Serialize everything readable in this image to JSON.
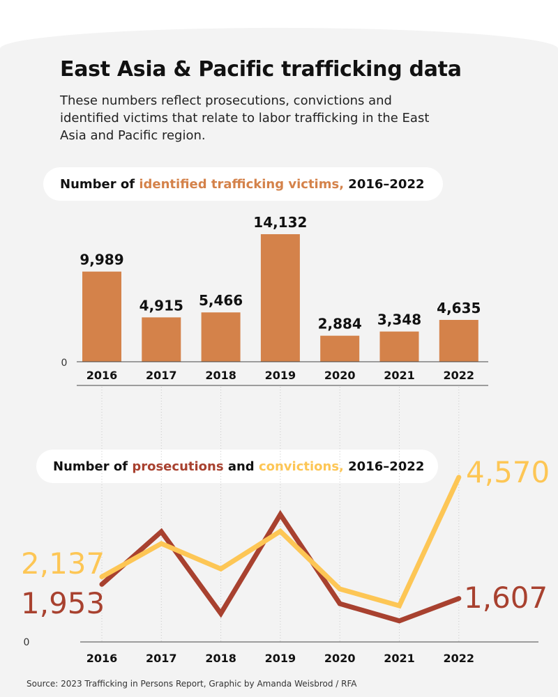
{
  "header": {
    "title": "East Asia & Pacific trafficking data",
    "subtitle": "These numbers reflect prosecutions, convictions and identified victims that relate to labor trafficking in the East Asia and Pacific region."
  },
  "chart_data": [
    {
      "type": "bar",
      "title_parts": [
        "Number of ",
        "identified trafficking victims,",
        " 2016–2022"
      ],
      "categories": [
        "2016",
        "2017",
        "2018",
        "2019",
        "2020",
        "2021",
        "2022"
      ],
      "values": [
        9989,
        4915,
        5466,
        14132,
        2884,
        3348,
        4635
      ],
      "value_labels": [
        "9,989",
        "4,915",
        "5,466",
        "14,132",
        "2,884",
        "3,348",
        "4,635"
      ],
      "ytick": "0",
      "ylim": [
        0,
        15000
      ],
      "grid": false,
      "color": "#d4824a"
    },
    {
      "type": "line",
      "title_parts": [
        "Number of ",
        "prosecutions",
        " and ",
        "convictions,",
        " 2016–2022"
      ],
      "categories": [
        "2016",
        "2017",
        "2018",
        "2019",
        "2020",
        "2021",
        "2022"
      ],
      "ytick": "0",
      "grid": "vertical dotted",
      "series": [
        {
          "name": "prosecutions",
          "color": "#a8412f",
          "values": [
            1953,
            3240,
            1240,
            3660,
            1480,
            1060,
            1607
          ],
          "end_labels": [
            "1,953",
            "1,607"
          ]
        },
        {
          "name": "convictions",
          "color": "#fdc655",
          "values": [
            2137,
            2950,
            2330,
            3250,
            1840,
            1430,
            4570
          ],
          "end_labels": [
            "2,137",
            "4,570"
          ]
        }
      ]
    }
  ],
  "footer": {
    "source": "Source: 2023 Trafficking in Persons Report, Graphic by Amanda Weisbrod / RFA"
  }
}
